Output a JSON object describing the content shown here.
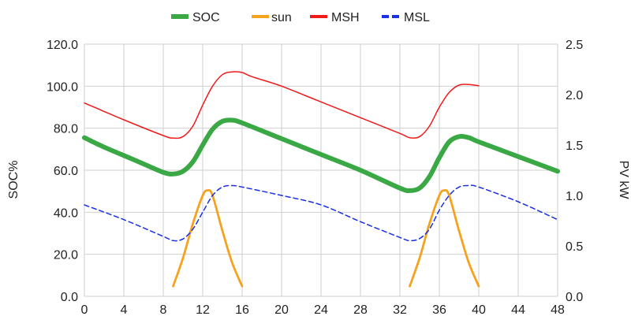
{
  "chart_data": {
    "type": "line",
    "x_ticks": [
      0,
      4,
      8,
      12,
      16,
      20,
      24,
      28,
      32,
      36,
      40,
      44,
      48
    ],
    "xlim": [
      0,
      48
    ],
    "ylim_left": [
      0,
      120
    ],
    "ylim_right": [
      0,
      2.5
    ],
    "y_ticks_left": [
      "0.0",
      "20.0",
      "40.0",
      "60.0",
      "80.0",
      "100.0",
      "120.0"
    ],
    "y_ticks_right": [
      "0.0",
      "0.5",
      "1.0",
      "1.5",
      "2.0",
      "2.5"
    ],
    "ylabel_left": "SOC%",
    "ylabel_right": "PV kW",
    "grid": true,
    "legend_position": "top",
    "series": [
      {
        "name": "SOC",
        "color": "#3aa845",
        "style": "solid-thick",
        "axis": "left",
        "points": [
          [
            0,
            75.5
          ],
          [
            2,
            71
          ],
          [
            4,
            67
          ],
          [
            6,
            63
          ],
          [
            8,
            59
          ],
          [
            9,
            58.2
          ],
          [
            10,
            59.5
          ],
          [
            11,
            64
          ],
          [
            12,
            72
          ],
          [
            13,
            79.5
          ],
          [
            14,
            83.3
          ],
          [
            15,
            83.8
          ],
          [
            16,
            82.5
          ],
          [
            20,
            75
          ],
          [
            24,
            67.5
          ],
          [
            28,
            60
          ],
          [
            32,
            51.5
          ],
          [
            33,
            50.3
          ],
          [
            34,
            51.5
          ],
          [
            35,
            57
          ],
          [
            36,
            66
          ],
          [
            37,
            73.5
          ],
          [
            38,
            76
          ],
          [
            39,
            75.5
          ],
          [
            40,
            73.5
          ],
          [
            44,
            66.5
          ],
          [
            48,
            59.5
          ]
        ]
      },
      {
        "name": "sun",
        "color": "#f5a21e",
        "style": "solid",
        "axis": "right",
        "points": [
          [
            9,
            0.1
          ],
          [
            10,
            0.38
          ],
          [
            11,
            0.72
          ],
          [
            12,
            1.0
          ],
          [
            12.5,
            1.05
          ],
          [
            13,
            1.0
          ],
          [
            14,
            0.65
          ],
          [
            15,
            0.33
          ],
          [
            16,
            0.1
          ],
          [
            33,
            0.1
          ],
          [
            34,
            0.38
          ],
          [
            35,
            0.72
          ],
          [
            36,
            1.0
          ],
          [
            36.5,
            1.05
          ],
          [
            37,
            1.0
          ],
          [
            38,
            0.65
          ],
          [
            39,
            0.33
          ],
          [
            40,
            0.1
          ]
        ]
      },
      {
        "name": "MSH",
        "color": "#f01a1a",
        "style": "solid-thin",
        "axis": "left",
        "points": [
          [
            0,
            92
          ],
          [
            4,
            84
          ],
          [
            8,
            76.5
          ],
          [
            9,
            75.3
          ],
          [
            10,
            76
          ],
          [
            11,
            81
          ],
          [
            12,
            91
          ],
          [
            13,
            100
          ],
          [
            14,
            105.5
          ],
          [
            15,
            106.8
          ],
          [
            16,
            106.5
          ],
          [
            17,
            104.5
          ],
          [
            20,
            100
          ],
          [
            24,
            92.5
          ],
          [
            28,
            85
          ],
          [
            32,
            77.5
          ],
          [
            33,
            75.5
          ],
          [
            34,
            76
          ],
          [
            35,
            81
          ],
          [
            36,
            90
          ],
          [
            37,
            97
          ],
          [
            38,
            100.5
          ],
          [
            39,
            100.8
          ],
          [
            40,
            100.2
          ]
        ]
      },
      {
        "name": "MSL",
        "color": "#1a30e6",
        "style": "dashed",
        "axis": "left",
        "points": [
          [
            0,
            43.5
          ],
          [
            4,
            36.5
          ],
          [
            8,
            28.5
          ],
          [
            9,
            26.5
          ],
          [
            10,
            27.3
          ],
          [
            11,
            32
          ],
          [
            12,
            40
          ],
          [
            13,
            48
          ],
          [
            14,
            52
          ],
          [
            15,
            52.7
          ],
          [
            16,
            52
          ],
          [
            20,
            48
          ],
          [
            24,
            43.5
          ],
          [
            28,
            35.5
          ],
          [
            32,
            28
          ],
          [
            33,
            26.5
          ],
          [
            34,
            27.5
          ],
          [
            35,
            32
          ],
          [
            36,
            41
          ],
          [
            37,
            48
          ],
          [
            38,
            52
          ],
          [
            39,
            52.7
          ],
          [
            40,
            52
          ],
          [
            44,
            45
          ],
          [
            48,
            36.5
          ]
        ]
      }
    ]
  }
}
